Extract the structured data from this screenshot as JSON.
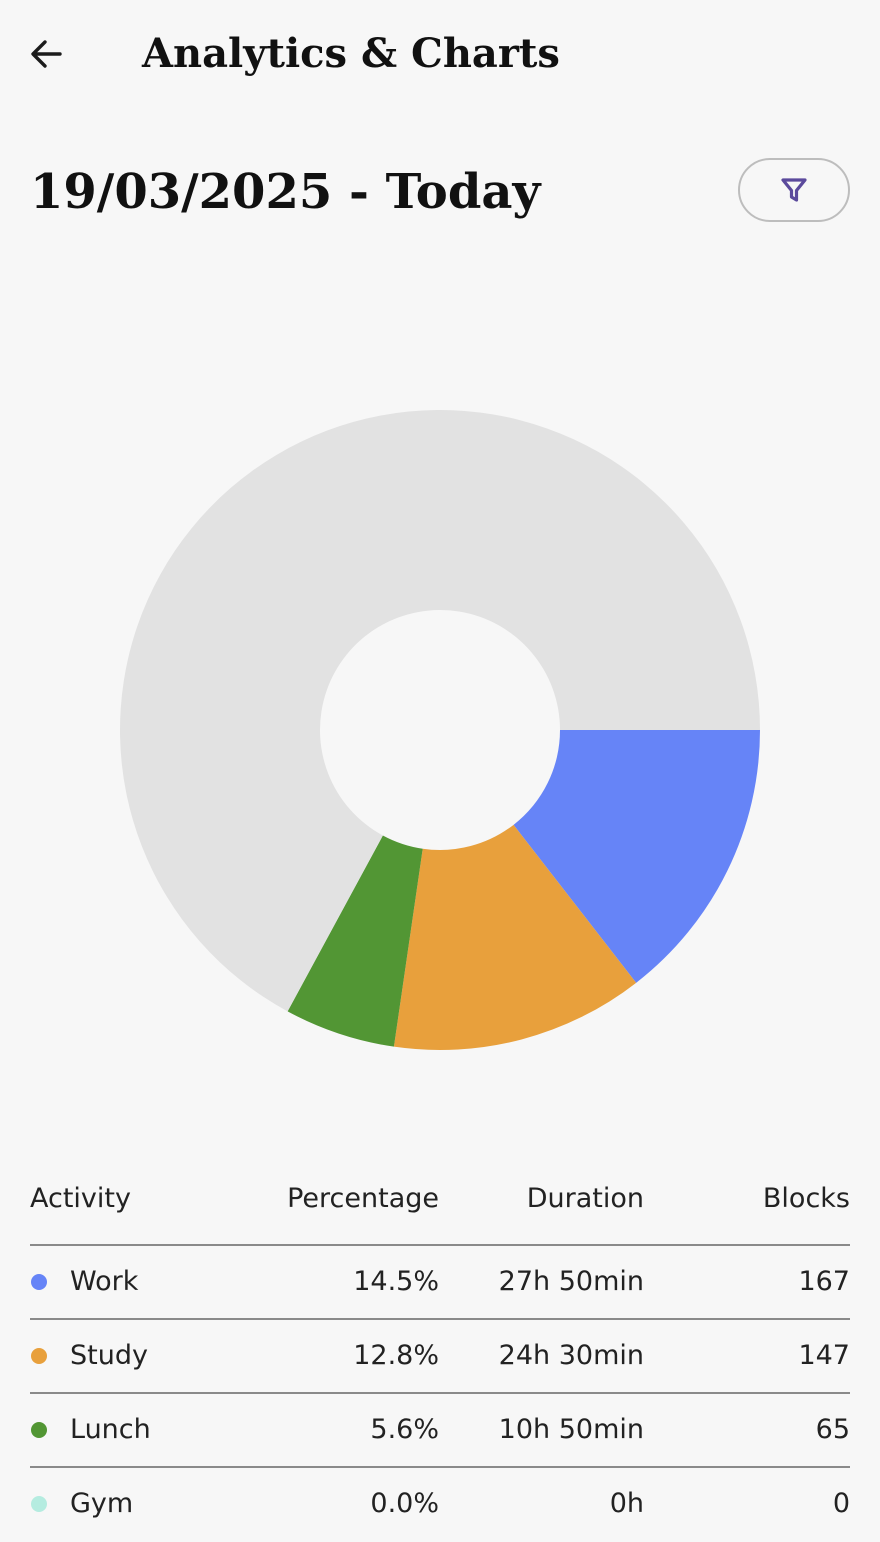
{
  "header": {
    "title": "Analytics & Charts",
    "back_icon": "arrow-left-icon"
  },
  "range": {
    "label": "19/03/2025 - Today",
    "filter_icon": "filter-icon"
  },
  "colors": {
    "background": "#f7f7f7",
    "remainder": "#e2e2e2",
    "filter_icon": "#5b4a9c"
  },
  "table": {
    "headers": {
      "activity": "Activity",
      "percentage": "Percentage",
      "duration": "Duration",
      "blocks": "Blocks"
    },
    "rows": [
      {
        "activity": "Work",
        "percentage": "14.5%",
        "duration": "27h 50min",
        "blocks": "167",
        "color": "#6684f7"
      },
      {
        "activity": "Study",
        "percentage": "12.8%",
        "duration": "24h 30min",
        "blocks": "147",
        "color": "#e8a03c"
      },
      {
        "activity": "Lunch",
        "percentage": "5.6%",
        "duration": "10h 50min",
        "blocks": "65",
        "color": "#529634"
      },
      {
        "activity": "Gym",
        "percentage": "0.0%",
        "duration": "0h",
        "blocks": "0",
        "color": "#b5ece0"
      }
    ]
  },
  "chart_data": {
    "type": "pie",
    "variant": "donut",
    "labels": [
      "Work",
      "Study",
      "Lunch",
      "Gym"
    ],
    "values": [
      14.5,
      12.8,
      5.6,
      0.0
    ],
    "unit": "%",
    "colors": [
      "#6684f7",
      "#e8a03c",
      "#529634",
      "#b5ece0"
    ],
    "remainder_color": "#e2e2e2",
    "start": "3 o'clock",
    "direction": "clockwise",
    "legend": "none"
  }
}
